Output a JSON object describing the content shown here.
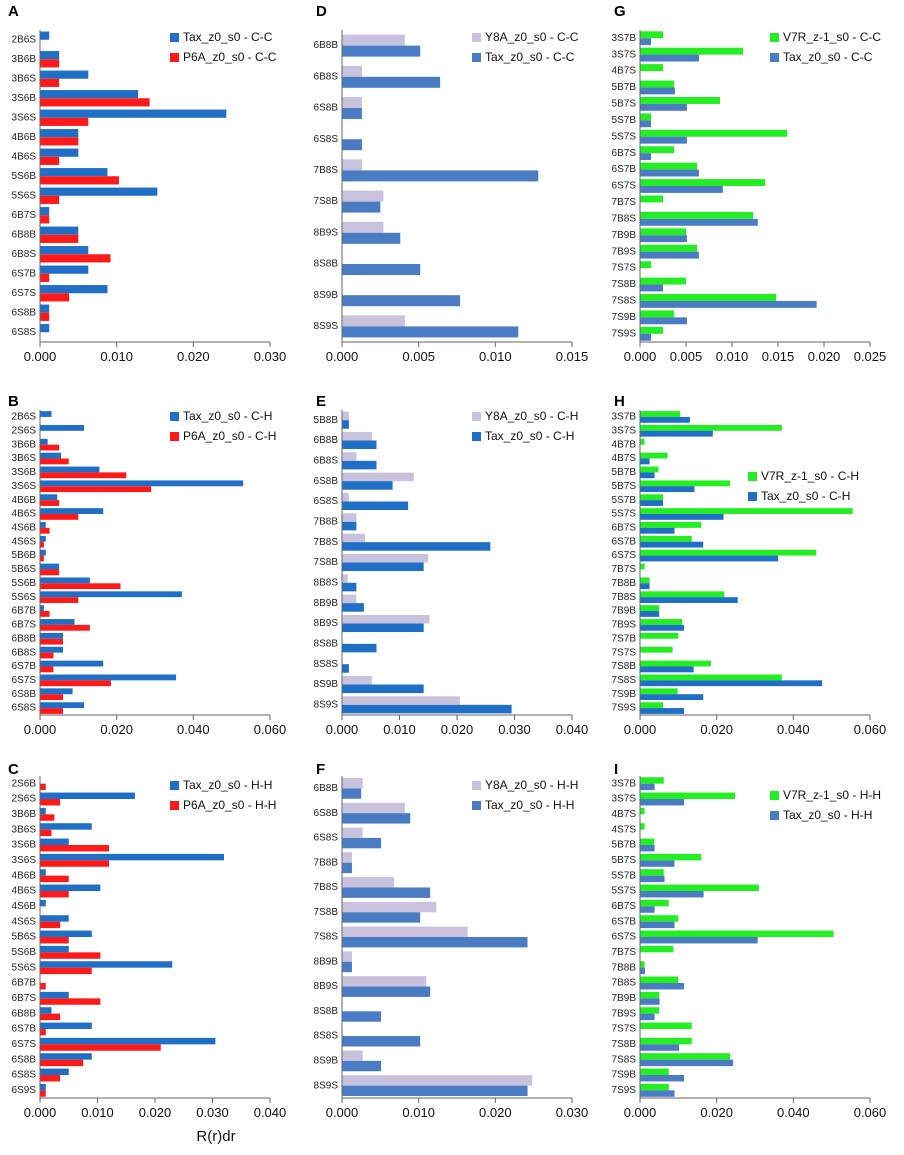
{
  "colors": {
    "blue": "#1f6fc6",
    "red": "#ff1a1a",
    "lavender": "#c9c2dc",
    "steel": "#4a7cc4",
    "green": "#22ee22",
    "axis": "#666666"
  },
  "xaxis_label": "R(r)dr",
  "chart_data": [
    {
      "panel": "A",
      "type": "bar",
      "orientation": "horizontal",
      "categories": [
        "2B6S",
        "3B6B",
        "3B6S",
        "3S6B",
        "3S6S",
        "4B6B",
        "4B6S",
        "5S6B",
        "5S6S",
        "6B7S",
        "6B8B",
        "6B8S",
        "6S7B",
        "6S7S",
        "6S8B",
        "6S8S"
      ],
      "series": [
        {
          "name": "Tax_z0_s0 - C-C",
          "color": "blue",
          "values": [
            0.0012,
            0.0025,
            0.0063,
            0.0128,
            0.0243,
            0.005,
            0.005,
            0.0088,
            0.0153,
            0.0012,
            0.005,
            0.0063,
            0.0063,
            0.0088,
            0.0012,
            0.0012
          ]
        },
        {
          "name": "P6A_z0_s0 - C-C",
          "color": "red",
          "values": [
            0,
            0.0025,
            0.0025,
            0.0143,
            0.0063,
            0.005,
            0.0025,
            0.0103,
            0.0025,
            0.0012,
            0.005,
            0.0092,
            0.0012,
            0.0038,
            0.0012,
            0
          ]
        }
      ],
      "xlim": [
        0,
        0.03
      ],
      "xticks": [
        "0.000",
        "0.010",
        "0.020",
        "0.030"
      ]
    },
    {
      "panel": "B",
      "type": "bar",
      "orientation": "horizontal",
      "categories": [
        "2B6S",
        "2S6S",
        "3B6B",
        "3B6S",
        "3S6B",
        "3S6S",
        "4B6B",
        "4B6S",
        "4S6B",
        "4S6S",
        "5B6B",
        "5B6S",
        "5S6B",
        "5S6S",
        "6B7B",
        "6B7S",
        "6B8B",
        "6B8S",
        "6S7B",
        "6S7S",
        "6S8B",
        "6S8S"
      ],
      "series": [
        {
          "name": "Tax_z0_s0 - C-H",
          "color": "blue",
          "values": [
            0.003,
            0.0115,
            0.002,
            0.0055,
            0.0155,
            0.053,
            0.0045,
            0.0165,
            0.0015,
            0.0015,
            0.0015,
            0.005,
            0.013,
            0.037,
            0.001,
            0.009,
            0.006,
            0.006,
            0.0165,
            0.0355,
            0.0085,
            0.0115
          ]
        },
        {
          "name": "P6A_z0_s0 - C-H",
          "color": "red",
          "values": [
            0,
            0,
            0.005,
            0.0075,
            0.0225,
            0.029,
            0.005,
            0.01,
            0.0025,
            0.001,
            0.001,
            0.005,
            0.021,
            0.01,
            0.0025,
            0.013,
            0.006,
            0.0035,
            0.0035,
            0.0185,
            0.006,
            0.006
          ]
        }
      ],
      "xlim": [
        0,
        0.06
      ],
      "xticks": [
        "0.000",
        "0.020",
        "0.040",
        "0.060"
      ]
    },
    {
      "panel": "C",
      "type": "bar",
      "orientation": "horizontal",
      "categories": [
        "2S6B",
        "2S6S",
        "3B6B",
        "3B6S",
        "3S6B",
        "3S6S",
        "4B6B",
        "4B6S",
        "4S6B",
        "4S6S",
        "5B6S",
        "5S6B",
        "5S6S",
        "6B7B",
        "6B7S",
        "6B8B",
        "6S7B",
        "6S7S",
        "6S8B",
        "6S8S",
        "6S9S"
      ],
      "series": [
        {
          "name": "Tax_z0_s0 - H-H",
          "color": "blue",
          "values": [
            0,
            0.0165,
            0.001,
            0.009,
            0.005,
            0.032,
            0.001,
            0.0105,
            0.001,
            0.005,
            0.009,
            0.005,
            0.023,
            0,
            0.005,
            0.002,
            0.009,
            0.0305,
            0.009,
            0.005,
            0.001
          ]
        },
        {
          "name": "P6A_z0_s0 - H-H",
          "color": "red",
          "values": [
            0.001,
            0.0035,
            0.0025,
            0.002,
            0.012,
            0.012,
            0.005,
            0.005,
            0,
            0.0035,
            0.005,
            0.0105,
            0.009,
            0.001,
            0.0105,
            0.0035,
            0.001,
            0.021,
            0.0075,
            0.0035,
            0.001
          ]
        }
      ],
      "xlim": [
        0,
        0.04
      ],
      "xticks": [
        "0.000",
        "0.010",
        "0.020",
        "0.030",
        "0.040"
      ]
    },
    {
      "panel": "D",
      "type": "bar",
      "orientation": "horizontal",
      "categories": [
        "6B8B",
        "6B8S",
        "6S8B",
        "6S8S",
        "7B8S",
        "7S8B",
        "8B9S",
        "8S8B",
        "8S9B",
        "8S9S"
      ],
      "series": [
        {
          "name": "Y8A_z0_s0 - C-C",
          "color": "lavender",
          "values": [
            0.0041,
            0.0013,
            0.0013,
            0,
            0.0013,
            0.0027,
            0.0027,
            0,
            0,
            0.0041
          ]
        },
        {
          "name": "Tax_z0_s0 - C-C",
          "color": "steel",
          "values": [
            0.0051,
            0.0064,
            0.0013,
            0.0013,
            0.0128,
            0.0025,
            0.0038,
            0.0051,
            0.0077,
            0.0115
          ]
        }
      ],
      "xlim": [
        0,
        0.015
      ],
      "xticks": [
        "0.000",
        "0.005",
        "0.010",
        "0.015"
      ]
    },
    {
      "panel": "E",
      "type": "bar",
      "orientation": "horizontal",
      "categories": [
        "5B8B",
        "6B8B",
        "6B8S",
        "6S8B",
        "6S8S",
        "7B8B",
        "7B8S",
        "7S8B",
        "8B8S",
        "8B9B",
        "8B9S",
        "8S8B",
        "8S8S",
        "8S9B",
        "8S9S"
      ],
      "series": [
        {
          "name": "Y8A_z0_s0 - C-H",
          "color": "lavender",
          "values": [
            0.0012,
            0.0052,
            0.0025,
            0.0125,
            0.0012,
            0.0025,
            0.004,
            0.015,
            0.001,
            0.0025,
            0.0152,
            0,
            0,
            0.0052,
            0.0205
          ]
        },
        {
          "name": "Tax_z0_s0 - C-H",
          "color": "blue",
          "values": [
            0.0012,
            0.006,
            0.006,
            0.0088,
            0.0115,
            0.0025,
            0.0258,
            0.0142,
            0.0025,
            0.0038,
            0.0142,
            0.006,
            0.0012,
            0.0142,
            0.0295
          ]
        }
      ],
      "xlim": [
        0,
        0.04
      ],
      "xticks": [
        "0.000",
        "0.010",
        "0.020",
        "0.030",
        "0.040"
      ]
    },
    {
      "panel": "F",
      "type": "bar",
      "orientation": "horizontal",
      "categories": [
        "6B8B",
        "6S8B",
        "6S8S",
        "7B8B",
        "7B8S",
        "7S8B",
        "7S8S",
        "8B9B",
        "8B9S",
        "8S8B",
        "8S8S",
        "8S9B",
        "8S9S"
      ],
      "series": [
        {
          "name": "Y8A_z0_s0 - H-H",
          "color": "lavender",
          "values": [
            0.0027,
            0.0082,
            0.0027,
            0.0013,
            0.0068,
            0.0123,
            0.0164,
            0.0013,
            0.011,
            0,
            0,
            0.0027,
            0.0248
          ]
        },
        {
          "name": "Tax_z0_s0 - H-H",
          "color": "steel",
          "values": [
            0.0025,
            0.0089,
            0.0051,
            0.0013,
            0.0115,
            0.0102,
            0.0242,
            0.0013,
            0.0115,
            0.0051,
            0.0102,
            0.0051,
            0.0242
          ]
        }
      ],
      "xlim": [
        0,
        0.03
      ],
      "xticks": [
        "0.000",
        "0.010",
        "0.020",
        "0.030"
      ]
    },
    {
      "panel": "G",
      "type": "bar",
      "orientation": "horizontal",
      "categories": [
        "3S7B",
        "3S7S",
        "4B7S",
        "5B7B",
        "5B7S",
        "5S7B",
        "5S7S",
        "6B7S",
        "6S7B",
        "6S7S",
        "7B7S",
        "7B8S",
        "7B9B",
        "7B9S",
        "7S7S",
        "7S8B",
        "7S8S",
        "7S9B",
        "7S9S"
      ],
      "series": [
        {
          "name": "V7R_z-1_s0 - C-C",
          "color": "green",
          "values": [
            0.0025,
            0.0112,
            0.0025,
            0.0037,
            0.0087,
            0.0012,
            0.016,
            0.0037,
            0.0062,
            0.0136,
            0.0025,
            0.0123,
            0.005,
            0.0062,
            0.0012,
            0.005,
            0.0148,
            0.0037,
            0.0025
          ]
        },
        {
          "name": "Tax_z0_s0 - C-C",
          "color": "steel",
          "values": [
            0.0012,
            0.0064,
            0,
            0.0038,
            0.0051,
            0.0012,
            0.0051,
            0.0012,
            0.0064,
            0.009,
            0,
            0.0128,
            0.0051,
            0.0064,
            0,
            0.0025,
            0.0192,
            0.0051,
            0.0012
          ]
        }
      ],
      "xlim": [
        0,
        0.025
      ],
      "xticks": [
        "0.000",
        "0.005",
        "0.010",
        "0.015",
        "0.020",
        "0.025"
      ]
    },
    {
      "panel": "H",
      "type": "bar",
      "orientation": "horizontal",
      "categories": [
        "3S7B",
        "3S7S",
        "4B7B",
        "4B7S",
        "5B7B",
        "5B7S",
        "5S7B",
        "5S7S",
        "6B7S",
        "6S7B",
        "6S7S",
        "7B7S",
        "7B8B",
        "7B8S",
        "7B9B",
        "7B9S",
        "7S7B",
        "7S7S",
        "7S8B",
        "7S8S",
        "7S9B",
        "7S9S"
      ],
      "series": [
        {
          "name": "V7R_z-1_s0 - C-H",
          "color": "green",
          "values": [
            0.0105,
            0.037,
            0.0012,
            0.0072,
            0.0048,
            0.0235,
            0.006,
            0.0555,
            0.016,
            0.0135,
            0.046,
            0.0012,
            0.0025,
            0.022,
            0.005,
            0.011,
            0.01,
            0.0085,
            0.0185,
            0.037,
            0.0098,
            0.006
          ]
        },
        {
          "name": "Tax_z0_s0 - C-H",
          "color": "blue",
          "values": [
            0.013,
            0.019,
            0,
            0.0025,
            0.0038,
            0.0142,
            0.006,
            0.0218,
            0.009,
            0.0165,
            0.036,
            0,
            0.0025,
            0.0255,
            0.005,
            0.0115,
            0,
            0,
            0.014,
            0.0475,
            0.0165,
            0.0115
          ]
        }
      ],
      "xlim": [
        0,
        0.06
      ],
      "xticks": [
        "0.000",
        "0.020",
        "0.040",
        "0.060"
      ]
    },
    {
      "panel": "I",
      "type": "bar",
      "orientation": "horizontal",
      "categories": [
        "3S7B",
        "3S7S",
        "4B7S",
        "4S7S",
        "5B7B",
        "5B7S",
        "5S7B",
        "5S7S",
        "6B7S",
        "6S7B",
        "6S7S",
        "7B7S",
        "7B8B",
        "7B8S",
        "7B9B",
        "7B9S",
        "7S7S",
        "7S8B",
        "7S8S",
        "7S9B",
        "7S9S"
      ],
      "series": [
        {
          "name": "V7R_z-1_s0 - H-H",
          "color": "green",
          "values": [
            0.0062,
            0.0248,
            0.0012,
            0.0012,
            0.0037,
            0.016,
            0.0062,
            0.031,
            0.0075,
            0.01,
            0.0505,
            0.0087,
            0.0012,
            0.01,
            0.005,
            0.005,
            0.0135,
            0.0135,
            0.0235,
            0.0075,
            0.0075
          ]
        },
        {
          "name": "Tax_z0_s0 - H-H",
          "color": "steel",
          "values": [
            0.0038,
            0.0115,
            0,
            0,
            0.0038,
            0.009,
            0.0064,
            0.0166,
            0.0038,
            0.009,
            0.0307,
            0,
            0.0013,
            0.0115,
            0.0051,
            0.0038,
            0,
            0.0102,
            0.0243,
            0.0115,
            0.009
          ]
        }
      ],
      "xlim": [
        0,
        0.06
      ],
      "xticks": [
        "0.000",
        "0.020",
        "0.040",
        "0.060"
      ]
    }
  ]
}
